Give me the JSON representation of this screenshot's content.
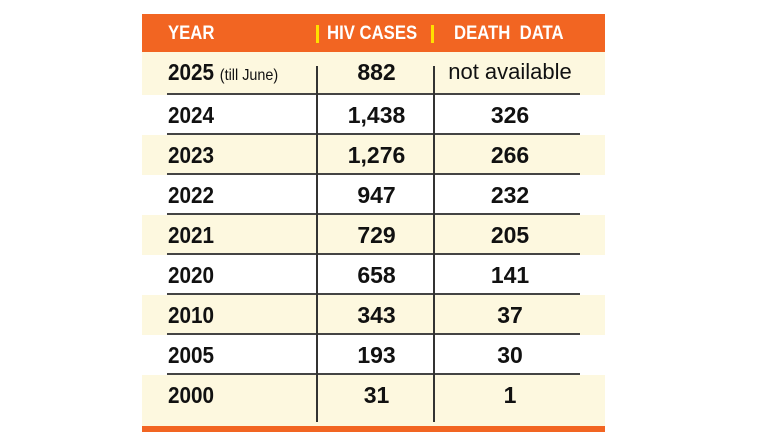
{
  "colors": {
    "header_bg": "#f26522",
    "header_separator": "#ffe000",
    "row_alt_bg": "#fdf8df",
    "row_bg": "#ffffff"
  },
  "header": {
    "year": "YEAR",
    "hiv": "HIV CASES",
    "death": "DEATH  DATA"
  },
  "rows": [
    {
      "year": "2025",
      "note": "(till June)",
      "hiv": "882",
      "death": "not available"
    },
    {
      "year": "2024",
      "hiv": "1,438",
      "death": "326"
    },
    {
      "year": "2023",
      "hiv": "1,276",
      "death": "266"
    },
    {
      "year": "2022",
      "hiv": "947",
      "death": "232"
    },
    {
      "year": "2021",
      "hiv": "729",
      "death": "205"
    },
    {
      "year": "2020",
      "hiv": "658",
      "death": "141"
    },
    {
      "year": "2010",
      "hiv": "343",
      "death": "37"
    },
    {
      "year": "2005",
      "hiv": "193",
      "death": "30"
    },
    {
      "year": "2000",
      "hiv": "31",
      "death": "1"
    }
  ]
}
